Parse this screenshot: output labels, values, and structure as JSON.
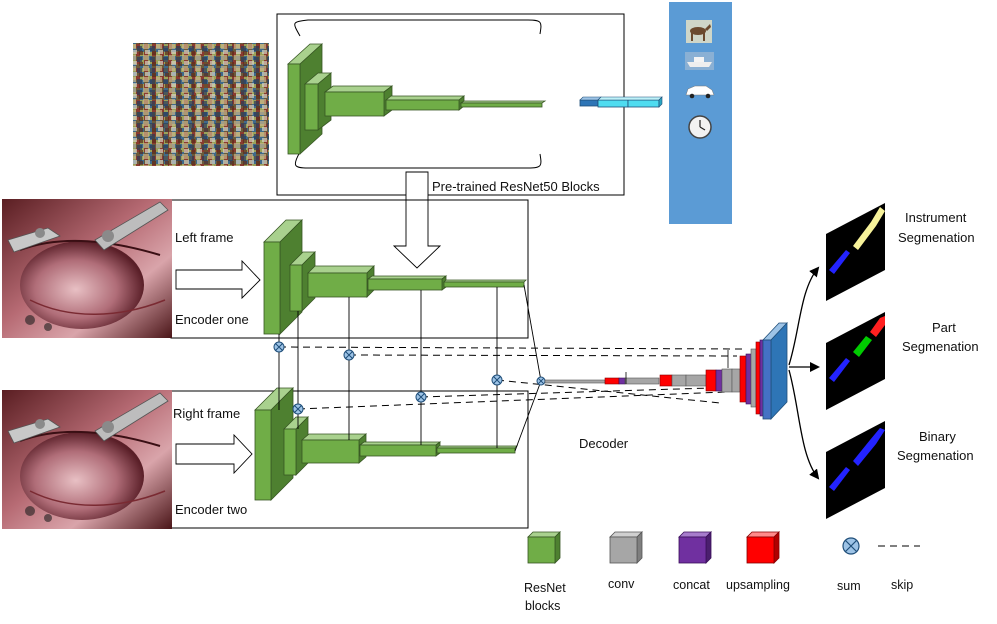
{
  "labels": {
    "pretrained": "Pre-trained ResNet50 Blocks",
    "left_frame": "Left frame",
    "encoder_one": "Encoder one",
    "right_frame": "Right frame",
    "encoder_two": "Encoder two",
    "decoder": "Decoder",
    "instrument_l1": "Instrument",
    "instrument_l2": "Segmenation",
    "part_l1": "Part",
    "part_l2": "Segmenation",
    "binary_l1": "Binary",
    "binary_l2": "Segmenation"
  },
  "legend": {
    "resnet_l1": "ResNet",
    "resnet_l2": "blocks",
    "conv": "conv",
    "concat": "concat",
    "upsampling": "upsampling",
    "sum": "sum",
    "skip": "skip"
  },
  "colors": {
    "resnet": "#70ad47",
    "resnet_dark": "#4e8030",
    "conv": "#a6a6a6",
    "concat": "#7030a0",
    "upsampling": "#ff0000",
    "sum_fill": "#9dc3e6",
    "sum_stroke": "#1f4e79",
    "classes_panel": "#5b9bd5",
    "feature_blue": "#2e75b6",
    "feature_cyan": "#4fdcf0",
    "mask_bg": "#000000",
    "mask_blue": "#2323ff",
    "mask_yellow": "#f7f29a",
    "mask_green": "#00cc00",
    "mask_red": "#ff2020"
  },
  "icons": [
    "image-mosaic-icon",
    "horse-icon",
    "boat-icon",
    "car-icon",
    "clock-icon",
    "surgical-frame-icon"
  ]
}
